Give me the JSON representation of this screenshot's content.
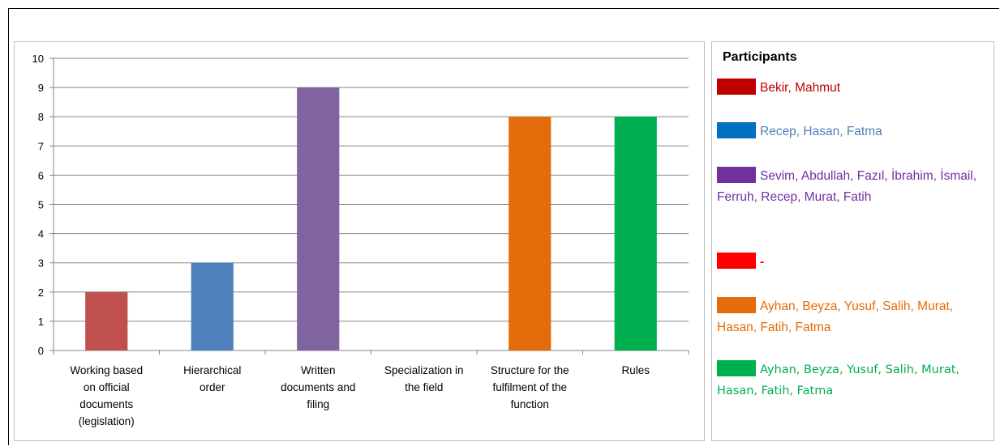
{
  "chart_data": {
    "type": "bar",
    "categories": [
      [
        "Working based",
        "on official",
        "documents",
        "(legislation)"
      ],
      [
        "Hierarchical",
        "order"
      ],
      [
        "Written",
        "documents and",
        "filing"
      ],
      [
        "Specialization in",
        "the field"
      ],
      [
        "Structure for the",
        "fulfilment of the",
        "function"
      ],
      [
        "Rules"
      ]
    ],
    "values": [
      2,
      3,
      9,
      0,
      8,
      8
    ],
    "colors": [
      "#c0504d",
      "#4f81bd",
      "#8064a2",
      "#ff0000",
      "#e46c0a",
      "#00b050"
    ],
    "ylim": [
      0,
      10
    ],
    "yticks": [
      0,
      1,
      2,
      3,
      4,
      5,
      6,
      7,
      8,
      9,
      10
    ],
    "grid": true,
    "legend_position": "right"
  },
  "legend": {
    "title": "Participants",
    "items": [
      {
        "swatch": "#c00000",
        "color": "#c00000",
        "label": "Bekir, Mahmut"
      },
      {
        "swatch": "#0070c0",
        "color": "#4f81bd",
        "label": "Recep, Hasan, Fatma"
      },
      {
        "swatch": "#7030a0",
        "color": "#7030a0",
        "label": "Sevim, Abdullah, Fazıl, İbrahim, İsmail, Ferruh, Recep, Murat, Fatih"
      },
      {
        "swatch": "#ff0000",
        "color": "#ff0000",
        "label": "-"
      },
      {
        "swatch": "#e46c0a",
        "color": "#e46c0a",
        "label": "Ayhan, Beyza, Yusuf, Salih, Murat, Hasan, Fatih, Fatma"
      },
      {
        "swatch": "#00b050",
        "color": "#00b050",
        "label": "Ayhan, Beyza, Yusuf, Salih, Murat, Hasan, Fatih, Fatma"
      }
    ]
  }
}
